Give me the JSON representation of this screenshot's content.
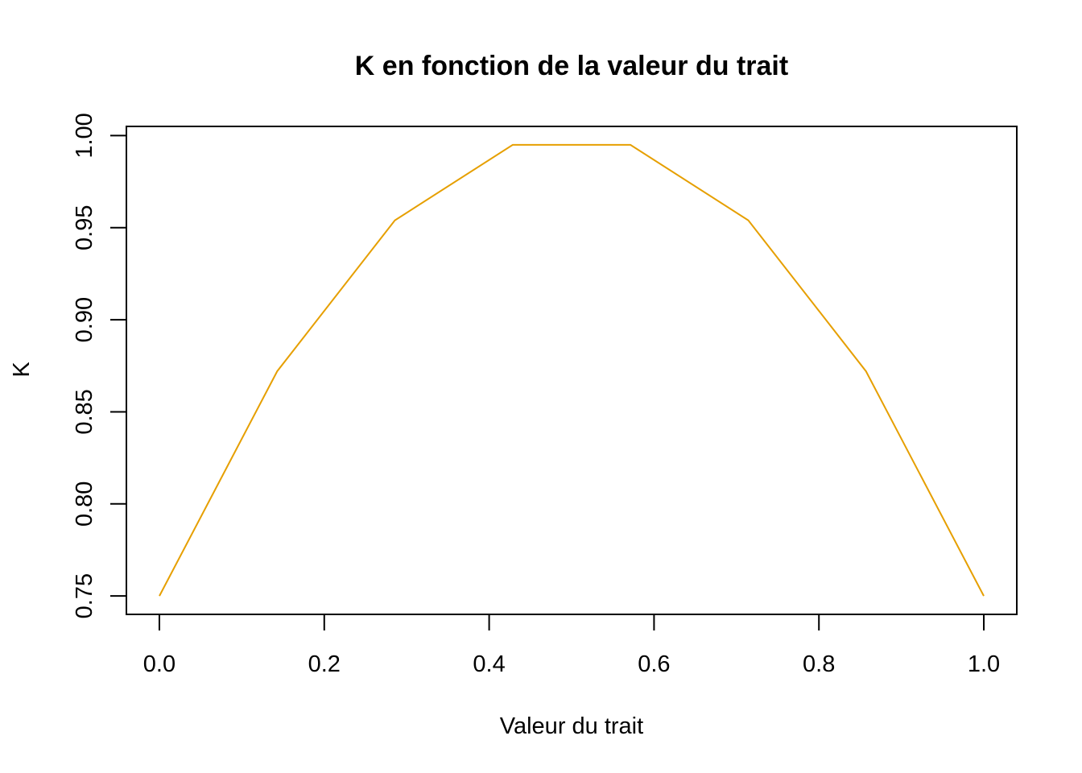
{
  "chart_data": {
    "type": "line",
    "title": "K en fonction de la valeur du trait",
    "xlabel": "Valeur du trait",
    "ylabel": "K",
    "xlim": [
      -0.04,
      1.04
    ],
    "ylim": [
      0.74,
      1.005
    ],
    "x_ticks": [
      0.0,
      0.2,
      0.4,
      0.6,
      0.8,
      1.0
    ],
    "x_tick_labels": [
      "0.0",
      "0.2",
      "0.4",
      "0.6",
      "0.8",
      "1.0"
    ],
    "y_ticks": [
      0.75,
      0.8,
      0.85,
      0.9,
      0.95,
      1.0
    ],
    "y_tick_labels": [
      "0.75",
      "0.80",
      "0.85",
      "0.90",
      "0.95",
      "1.00"
    ],
    "grid": false,
    "series": [
      {
        "color": "#E69F00",
        "x": [
          0.0,
          0.1429,
          0.2857,
          0.4286,
          0.5714,
          0.7143,
          0.8571,
          1.0
        ],
        "y": [
          0.75,
          0.872,
          0.954,
          0.995,
          0.995,
          0.954,
          0.872,
          0.75
        ]
      }
    ]
  }
}
